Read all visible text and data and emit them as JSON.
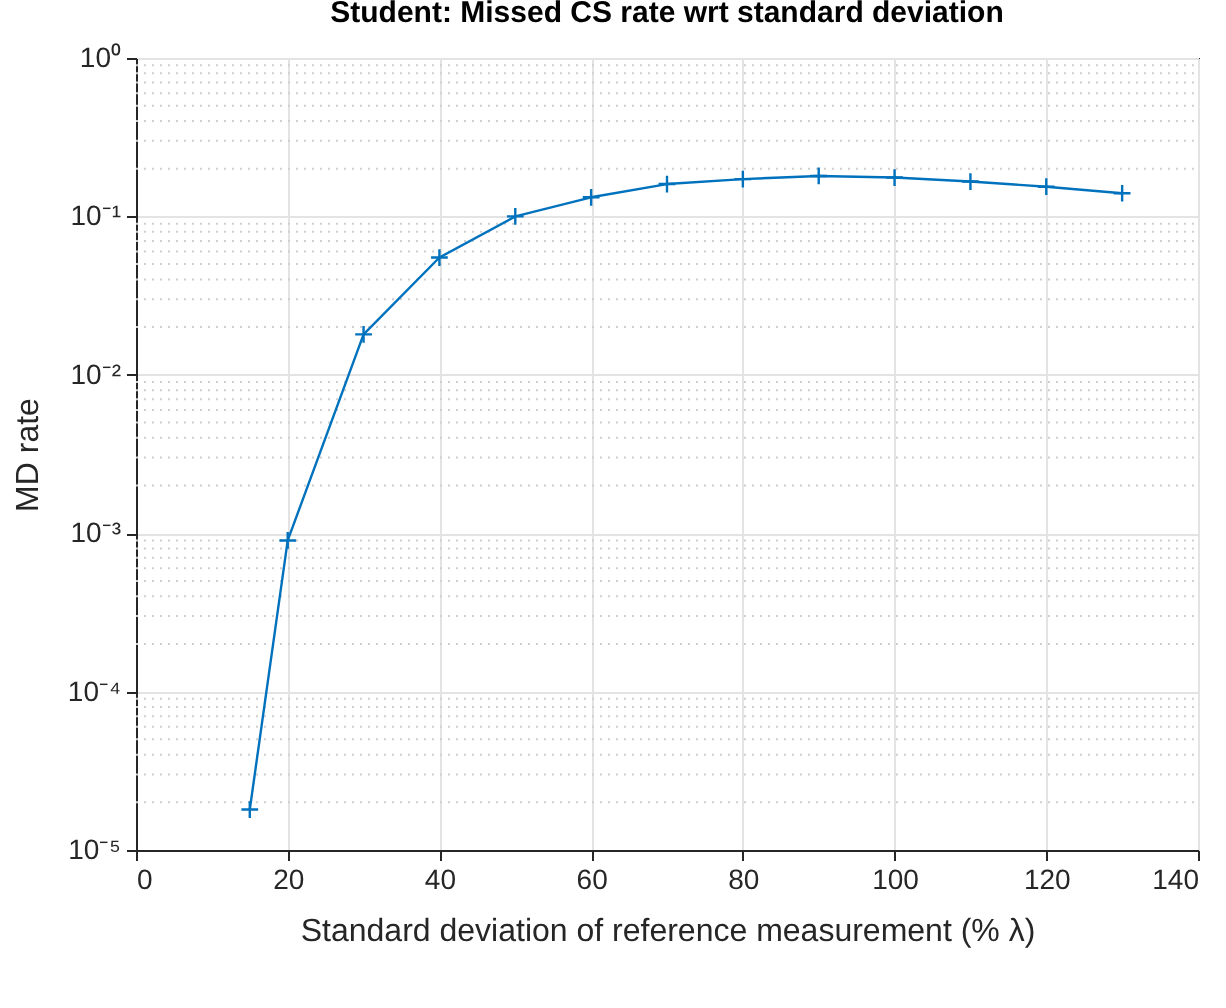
{
  "chart_data": {
    "type": "line",
    "title": "Student: Missed CS rate wrt standard deviation",
    "xlabel": "Standard deviation of reference measurement (% λ)",
    "ylabel": "MD rate",
    "x": [
      15,
      20,
      30,
      40,
      50,
      60,
      70,
      80,
      90,
      100,
      110,
      120,
      130
    ],
    "series": [
      {
        "color": "#0072bd",
        "values": [
          1.8e-05,
          0.0009,
          0.018,
          0.055,
          0.1,
          0.132,
          0.16,
          0.172,
          0.18,
          0.176,
          0.166,
          0.154,
          0.14
        ]
      }
    ],
    "xlim": [
      0,
      140
    ],
    "xticks": [
      0,
      20,
      40,
      60,
      80,
      100,
      120,
      140
    ],
    "ylim": [
      1e-05,
      1
    ],
    "yticks": [
      {
        "value": 1e-05,
        "label": "10⁻⁵"
      },
      {
        "value": 0.0001,
        "label": "10⁻⁴"
      },
      {
        "value": 0.001,
        "label": "10⁻³"
      },
      {
        "value": 0.01,
        "label": "10⁻²"
      },
      {
        "value": 0.1,
        "label": "10⁻¹"
      },
      {
        "value": 1,
        "label": "10⁰"
      }
    ],
    "log": "y",
    "grid": true,
    "marker": "cross",
    "line_style": "solid"
  }
}
